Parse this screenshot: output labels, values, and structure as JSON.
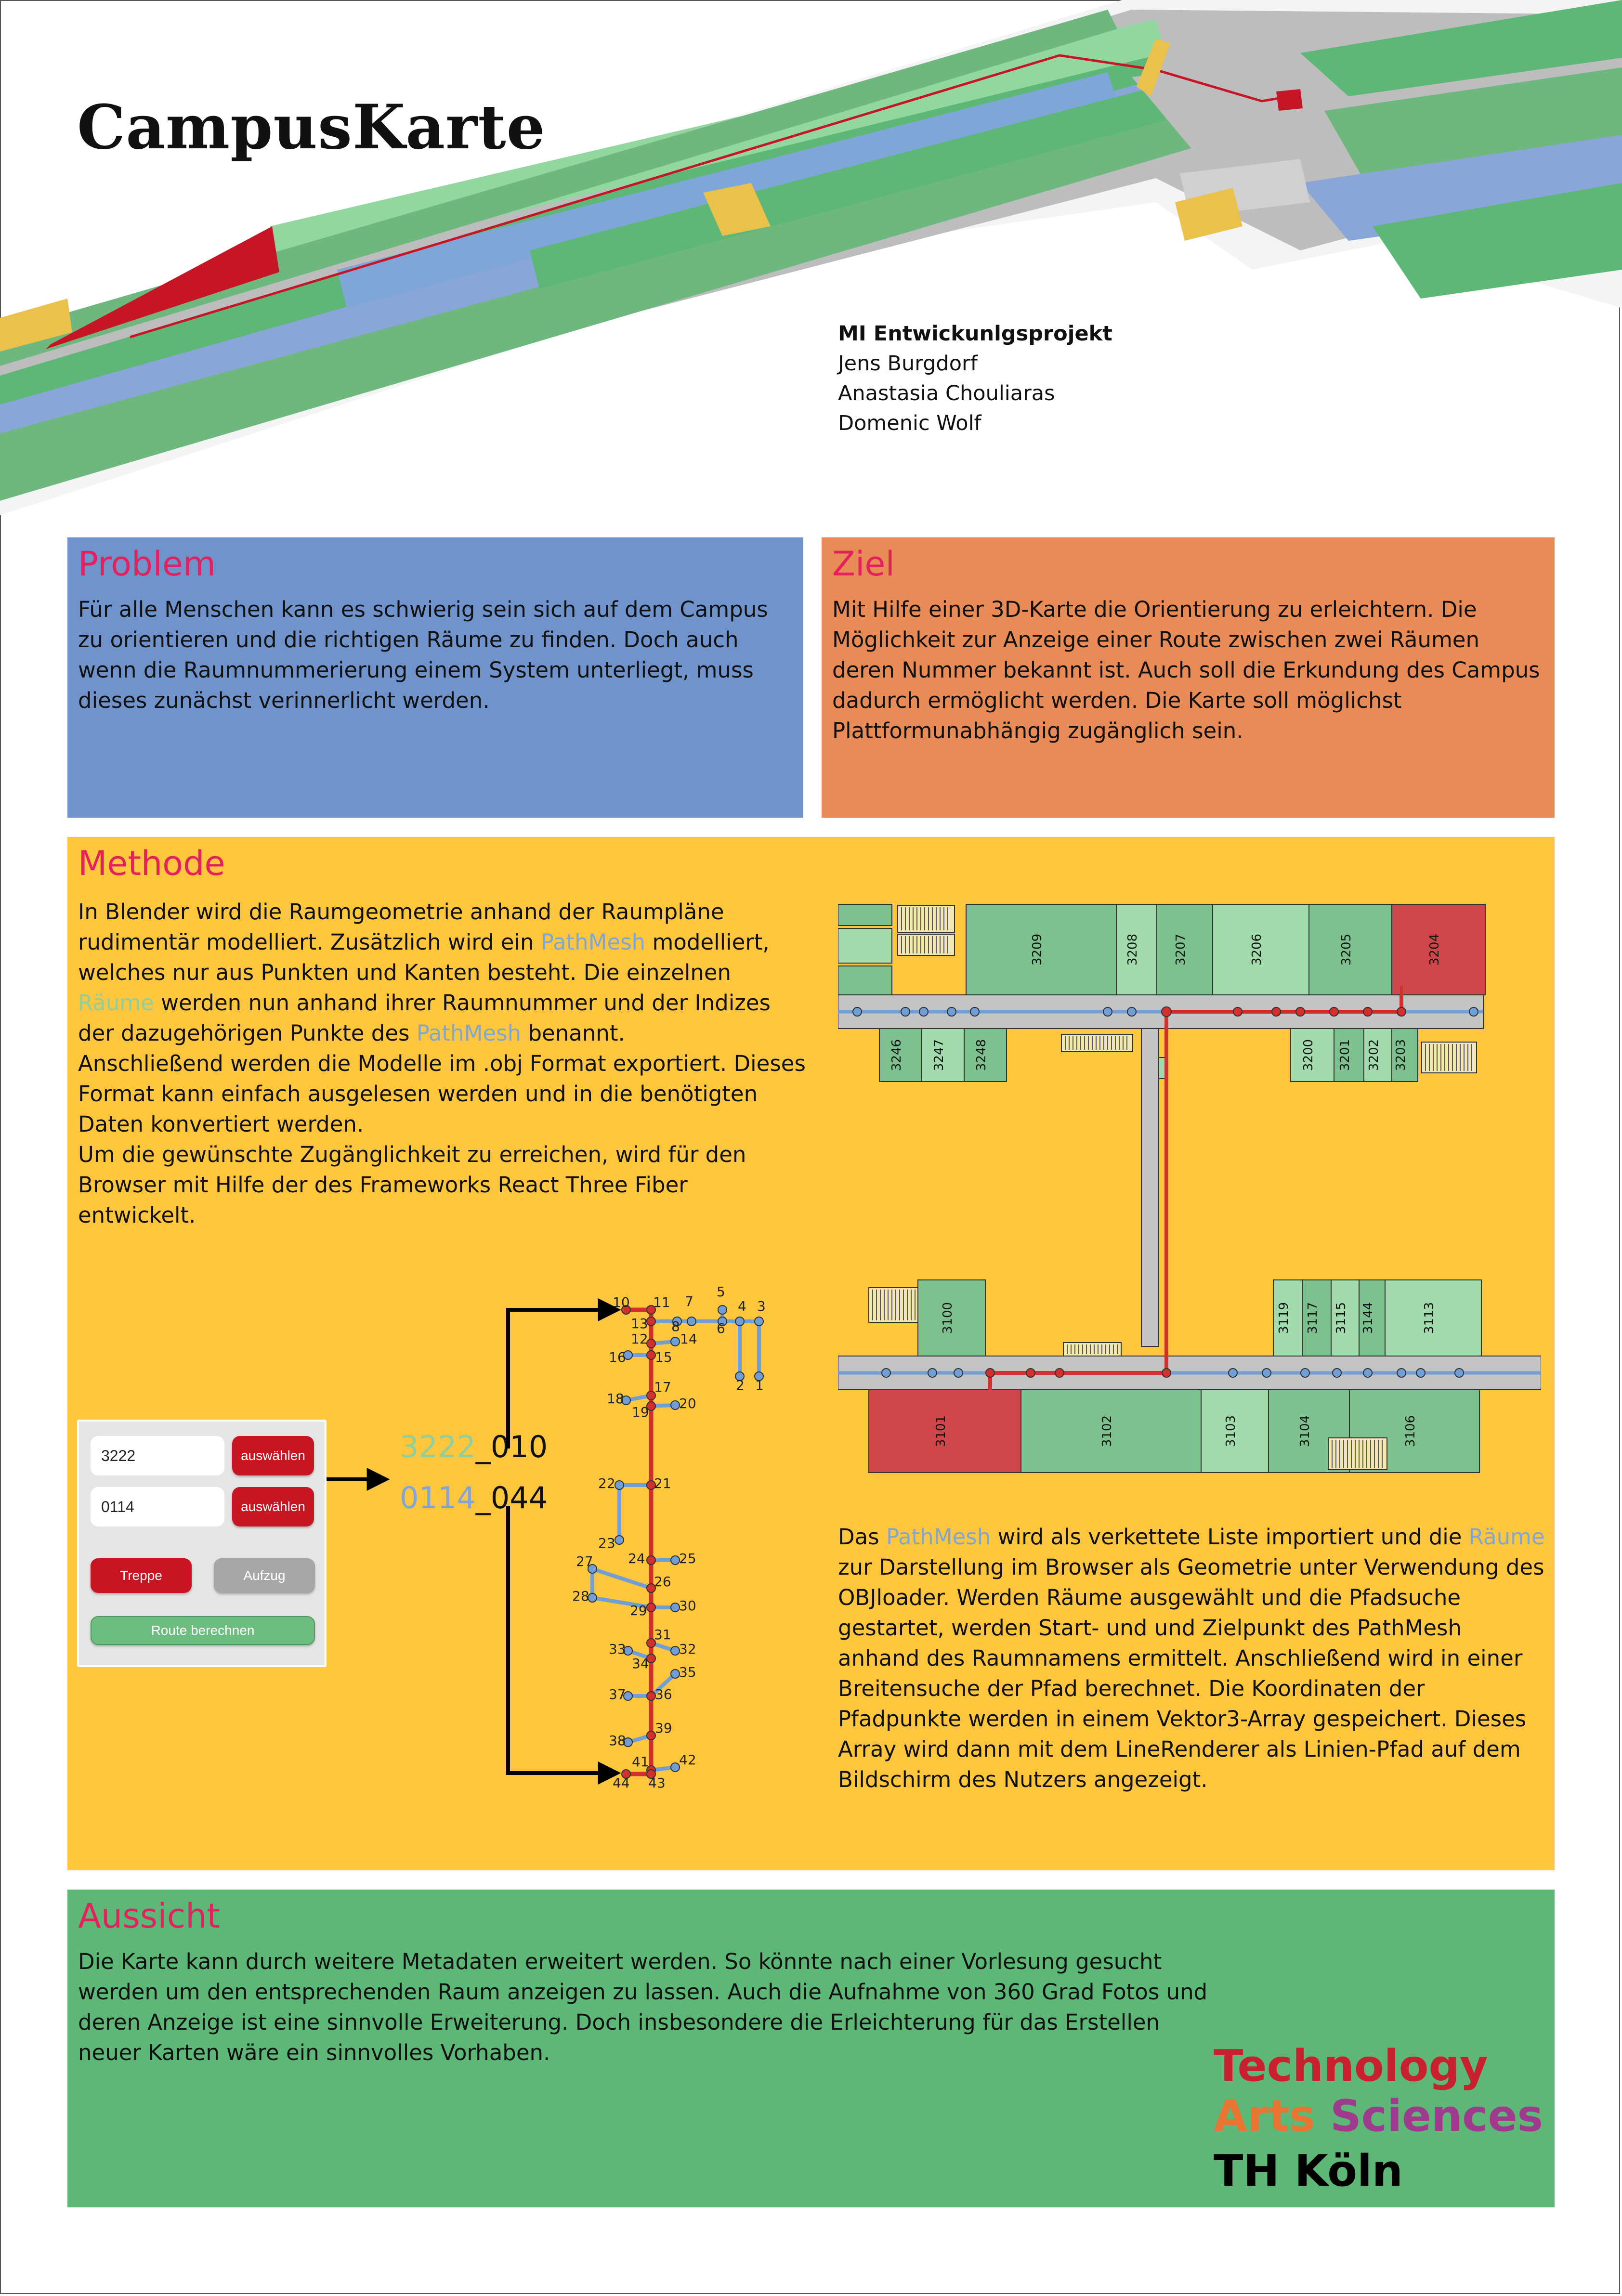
{
  "header": {
    "title": "CampusKarte",
    "project": "MI Entwickunlgsprojekt",
    "authors": [
      "Jens Burgdorf",
      "Anastasia Chouliaras",
      "Domenic Wolf"
    ]
  },
  "problem": {
    "title": "Problem",
    "text": "Für alle Menschen kann es schwierig sein sich auf dem Campus zu orientieren und die richtigen Räume zu finden. Doch auch wenn die Raumnummerierung einem System unterliegt, muss dieses zunächst verinnerlicht werden."
  },
  "ziel": {
    "title": "Ziel",
    "text": "Mit Hilfe einer 3D-Karte die Orientierung zu erleichtern. Die Möglichkeit zur Anzeige einer Route zwischen zwei Räumen deren Nummer bekannt ist. Auch soll die Erkundung des Campus dadurch ermöglicht werden. Die Karte soll möglichst Plattformunabhängig zugänglich sein."
  },
  "methode": {
    "title": "Methode",
    "p1_a": "In Blender wird die Raumgeometrie anhand der Raumpläne rudimentär modelliert. Zusätzlich wird ein ",
    "pathmesh": "PathMesh",
    "p1_b": " modelliert, welches nur aus Punkten und Kanten besteht. Die einzelnen ",
    "raeume": "Räume",
    "p1_c": " werden nun anhand ihrer Raumnummer und der Indizes der dazugehörigen Punkte des ",
    "p1_d": " benannt.",
    "p2": "Anschließend werden die Modelle im .obj Format exportiert. Dieses Format kann einfach ausgelesen werden und in die benötigten Daten konvertiert werden.",
    "p3": "Um die gewünschte Zugänglichkeit zu erreichen, wird für den Browser mit Hilfe der des Frameworks React Three Fiber entwickelt.",
    "p4_a": "Das ",
    "p4_b": " wird als verkettete Liste importiert und die ",
    "p4_c": " zur Darstellung im Browser als Geometrie unter Verwendung des OBJloader. Werden Räume ausgewählt und die Pfadsuche gestartet, werden Start- und und Zielpunkt des PathMesh anhand des Raumnamens ermittelt. Anschließend wird in einer Breitensuche der Pfad berechnet. Die Koordinaten der Pfadpunkte werden in einem Vektor3-Array gespeichert. Dieses Array wird dann mit dem LineRenderer als Linien-Pfad auf dem Bildschirm des Nutzers angezeigt."
  },
  "ui": {
    "start_value": "3222",
    "end_value": "0114",
    "select_label": "auswählen",
    "stairs_label": "Treppe",
    "elevator_label": "Aufzug",
    "route_label": "Route berechnen"
  },
  "codes": {
    "start_room": "3222",
    "start_index": "010",
    "end_room": "0114",
    "end_index": "044",
    "sep": "_"
  },
  "floorplan": {
    "rooms_top": [
      "3209",
      "3208",
      "3207",
      "3206",
      "3205",
      "3204"
    ],
    "rooms_top_left": [
      "3246",
      "3247",
      "3248"
    ],
    "rooms_top_right": [
      "3200",
      "3201",
      "3202",
      "3203"
    ],
    "rooms_bottom_top": [
      "3100",
      "3119",
      "3117",
      "3115",
      "3144",
      "3113"
    ],
    "rooms_bottom": [
      "3101",
      "3102",
      "3103",
      "3104",
      "3106"
    ]
  },
  "graph": {
    "labels": [
      "1",
      "2",
      "3",
      "4",
      "5",
      "6",
      "7",
      "8",
      "10",
      "11",
      "12",
      "13",
      "14",
      "15",
      "16",
      "17",
      "18",
      "19",
      "20",
      "21",
      "22",
      "23",
      "24",
      "25",
      "26",
      "27",
      "28",
      "29",
      "30",
      "31",
      "32",
      "33",
      "34",
      "35",
      "36",
      "37",
      "38",
      "39",
      "41",
      "42",
      "43",
      "44"
    ]
  },
  "aussicht": {
    "title": "Aussicht",
    "text": "Die Karte kann durch weitere Metadaten erweitert werden. So könnte nach einer Vorlesung gesucht werden um den entsprechenden Raum anzeigen zu lassen. Auch die Aufnahme von 360 Grad Fotos und deren Anzeige ist eine sinnvolle Erweiterung. Doch insbesondere die Erleichterung für das Erstellen neuer Karten wäre ein sinnvolles Vorhaben."
  },
  "logo": {
    "technology": "Technology",
    "arts": "Arts",
    "sciences": "Sciences",
    "th": "TH Köln",
    "colors": {
      "technology": "#c8202f",
      "arts": "#e87532",
      "sciences": "#a03a8e"
    }
  }
}
